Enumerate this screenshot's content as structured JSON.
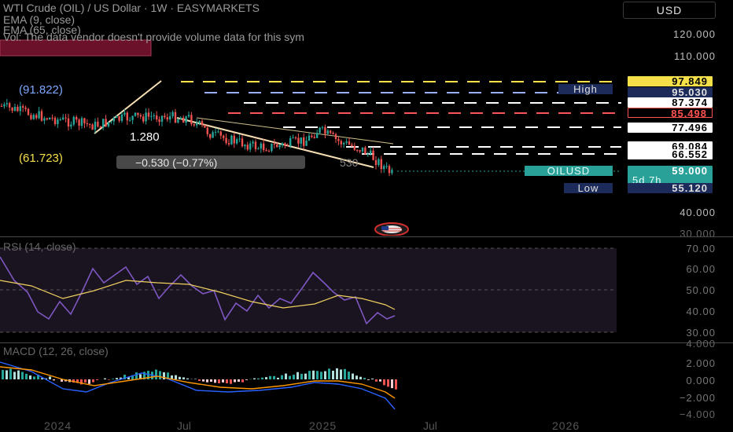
{
  "header": {
    "title": "WTI Crude (OIL) / US Dollar · 1W · EASYMARKETS",
    "ema9": "EMA (9, close)",
    "ema65": "EMA (65, close)",
    "vol": "Vol: The data vendor doesn't provide volume data for this sym",
    "currency": "USD"
  },
  "price_axis": {
    "labels": [
      "120.000",
      "110.000",
      "40.000",
      "30.000"
    ]
  },
  "price_tags": {
    "t97": "97.849",
    "high_label": "High",
    "t95": "95.030",
    "t87": "87.374",
    "t85": "85.498",
    "t77": "77.496",
    "t69": "69.084",
    "t66": "66.552",
    "symbol": "OILUSD",
    "t59": "59.000",
    "countdown": "5d 7h",
    "low_label": "Low",
    "t55": "55.120"
  },
  "fib_labels": {
    "l1": "(91.822)",
    "l2": "(61.723)",
    "l3": "1.280",
    "change": "−0.530 (−0.77%)",
    "change_right": "530"
  },
  "rsi": {
    "title": "RSI (14, close)",
    "axis": [
      "70.00",
      "60.00",
      "50.00",
      "40.00",
      "30.00"
    ]
  },
  "macd": {
    "title": "MACD (12, 26, close)",
    "axis": [
      "4.000",
      "2.000",
      "0.000",
      "−2.000",
      "−4.000"
    ]
  },
  "time_axis": {
    "labels": [
      "2024",
      "Jul",
      "2025",
      "Jul",
      "2026"
    ]
  },
  "colors": {
    "up": "#26a69a",
    "down": "#ef5350",
    "yellow_tag": "#f5e04a",
    "navy_tag": "#1c2b5a",
    "teal_tag": "#2aa198",
    "rsi_line": "#7e57c2",
    "ema_line": "#f0d060",
    "macd_line": "#2962ff",
    "signal_line": "#ff9800"
  }
}
